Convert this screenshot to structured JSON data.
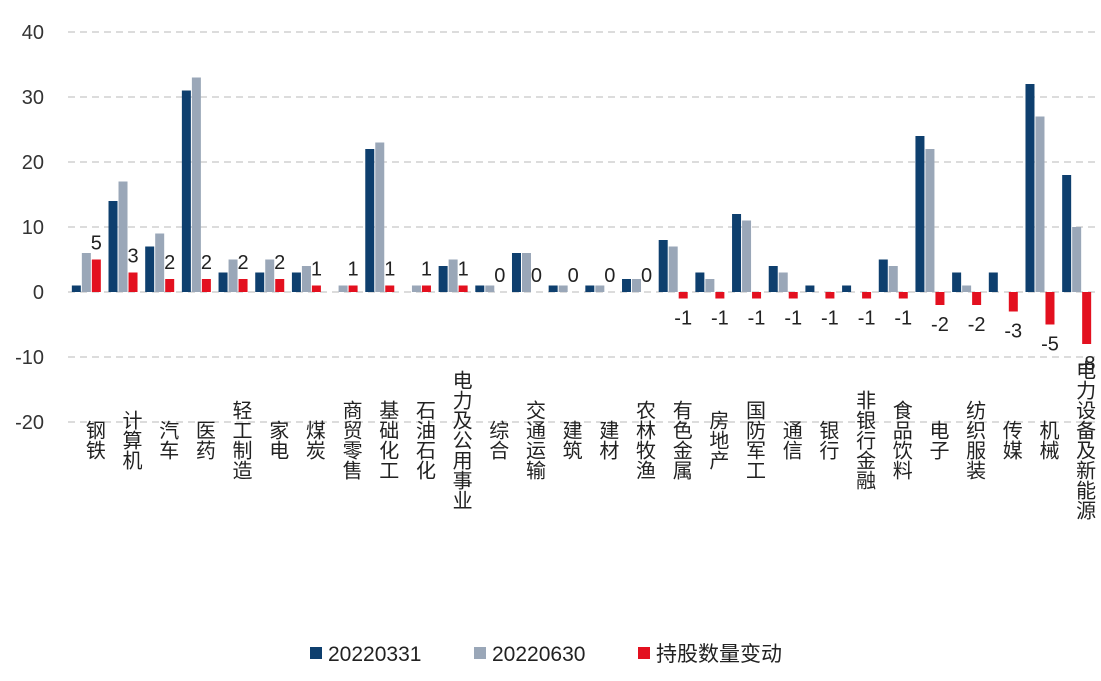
{
  "chart_data": {
    "type": "bar",
    "categories": [
      "钢铁",
      "计算机",
      "汽车",
      "医药",
      "轻工制造",
      "家电",
      "煤炭",
      "商贸零售",
      "基础化工",
      "石油石化",
      "电力及公用事业",
      "综合",
      "交通运输",
      "建筑",
      "建材",
      "农林牧渔",
      "有色金属",
      "房地产",
      "国防军工",
      "通信",
      "银行",
      "非银行金融",
      "食品饮料",
      "电子",
      "纺织服装",
      "传媒",
      "机械",
      "电力设备及新能源"
    ],
    "series": [
      {
        "name": "20220331",
        "color": "#0e3f6e",
        "values": [
          1,
          14,
          7,
          31,
          3,
          3,
          3,
          0,
          22,
          0,
          4,
          1,
          6,
          1,
          1,
          2,
          8,
          3,
          12,
          4,
          1,
          1,
          5,
          24,
          3,
          3,
          32,
          18
        ]
      },
      {
        "name": "20220630",
        "color": "#9aa7b8",
        "values": [
          6,
          17,
          9,
          33,
          5,
          5,
          4,
          1,
          23,
          1,
          5,
          1,
          6,
          1,
          1,
          2,
          7,
          2,
          11,
          3,
          0,
          0,
          4,
          22,
          1,
          0,
          27,
          10
        ]
      },
      {
        "name": "持股数量变动",
        "color": "#e3101f",
        "values": [
          5,
          3,
          2,
          2,
          2,
          2,
          1,
          1,
          1,
          1,
          1,
          0,
          0,
          0,
          0,
          0,
          -1,
          -1,
          -1,
          -1,
          -1,
          -1,
          -1,
          -2,
          -2,
          -3,
          -5,
          -8
        ]
      }
    ],
    "data_labels": [
      "5",
      "3",
      "2",
      "2",
      "2",
      "2",
      "1",
      "1",
      "1",
      "1",
      "1",
      "0",
      "0",
      "0",
      "0",
      "0",
      "-1",
      "-1",
      "-1",
      "-1",
      "-1",
      "-1",
      "-1",
      "-2",
      "-2",
      "-3",
      "-5",
      "-8"
    ],
    "yticks": [
      "40",
      "30",
      "20",
      "10",
      "0",
      "-10",
      "-20"
    ],
    "ylim": [
      -20,
      40
    ],
    "grid": true,
    "legend_position": "bottom",
    "title": "",
    "xlabel": "",
    "ylabel": ""
  }
}
